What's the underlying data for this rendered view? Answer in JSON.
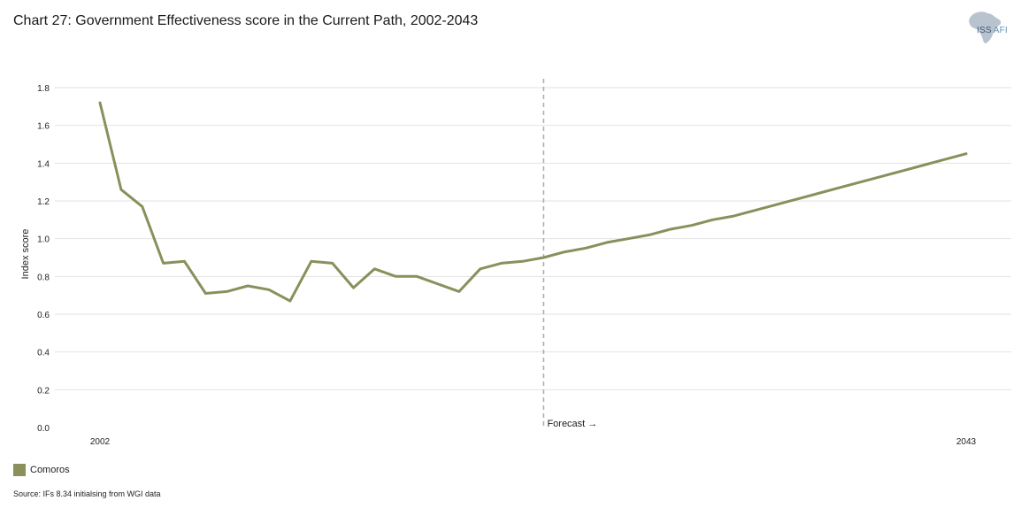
{
  "title": "Chart 27: Government Effectiveness score in the Current Path, 2002-2043",
  "logo": {
    "name": "ISS",
    "suffix": "AFI"
  },
  "legend": {
    "label": "Comoros"
  },
  "source": "Source: IFs 8.34 initialsing from WGI data",
  "forecast_label": "Forecast →",
  "colors": {
    "series": "#8a8f5c",
    "grid": "#e2e2e2",
    "forecast_line": "#aaaaaa",
    "logo": "#b9c3cf"
  },
  "chart_data": {
    "type": "line",
    "title": "Chart 27: Government Effectiveness score in the Current Path, 2002-2043",
    "xlabel": "",
    "ylabel": "Index score",
    "xlim": [
      2002,
      2043
    ],
    "ylim": [
      0,
      1.8
    ],
    "yticks": [
      "0.0",
      "0.2",
      "0.4",
      "0.6",
      "0.8",
      "1.0",
      "1.2",
      "1.4",
      "1.6",
      "1.8"
    ],
    "xtick_labels": [
      "2002",
      "2043"
    ],
    "forecast_start": 2023,
    "grid": true,
    "legend_position": "bottom-left",
    "series": [
      {
        "name": "Comoros",
        "x": [
          2002,
          2003,
          2004,
          2005,
          2006,
          2007,
          2008,
          2009,
          2010,
          2011,
          2012,
          2013,
          2014,
          2015,
          2016,
          2017,
          2018,
          2019,
          2020,
          2021,
          2022,
          2023,
          2024,
          2025,
          2026,
          2027,
          2028,
          2029,
          2030,
          2031,
          2032,
          2033,
          2034,
          2035,
          2036,
          2037,
          2038,
          2039,
          2040,
          2041,
          2042,
          2043
        ],
        "values": [
          1.72,
          1.26,
          1.17,
          0.87,
          0.88,
          0.71,
          0.72,
          0.75,
          0.73,
          0.67,
          0.88,
          0.87,
          0.74,
          0.84,
          0.8,
          0.8,
          0.76,
          0.72,
          0.84,
          0.87,
          0.88,
          0.9,
          0.93,
          0.95,
          0.98,
          1.0,
          1.02,
          1.05,
          1.07,
          1.1,
          1.12,
          1.15,
          1.18,
          1.21,
          1.24,
          1.27,
          1.3,
          1.33,
          1.36,
          1.39,
          1.42,
          1.45
        ]
      }
    ]
  }
}
